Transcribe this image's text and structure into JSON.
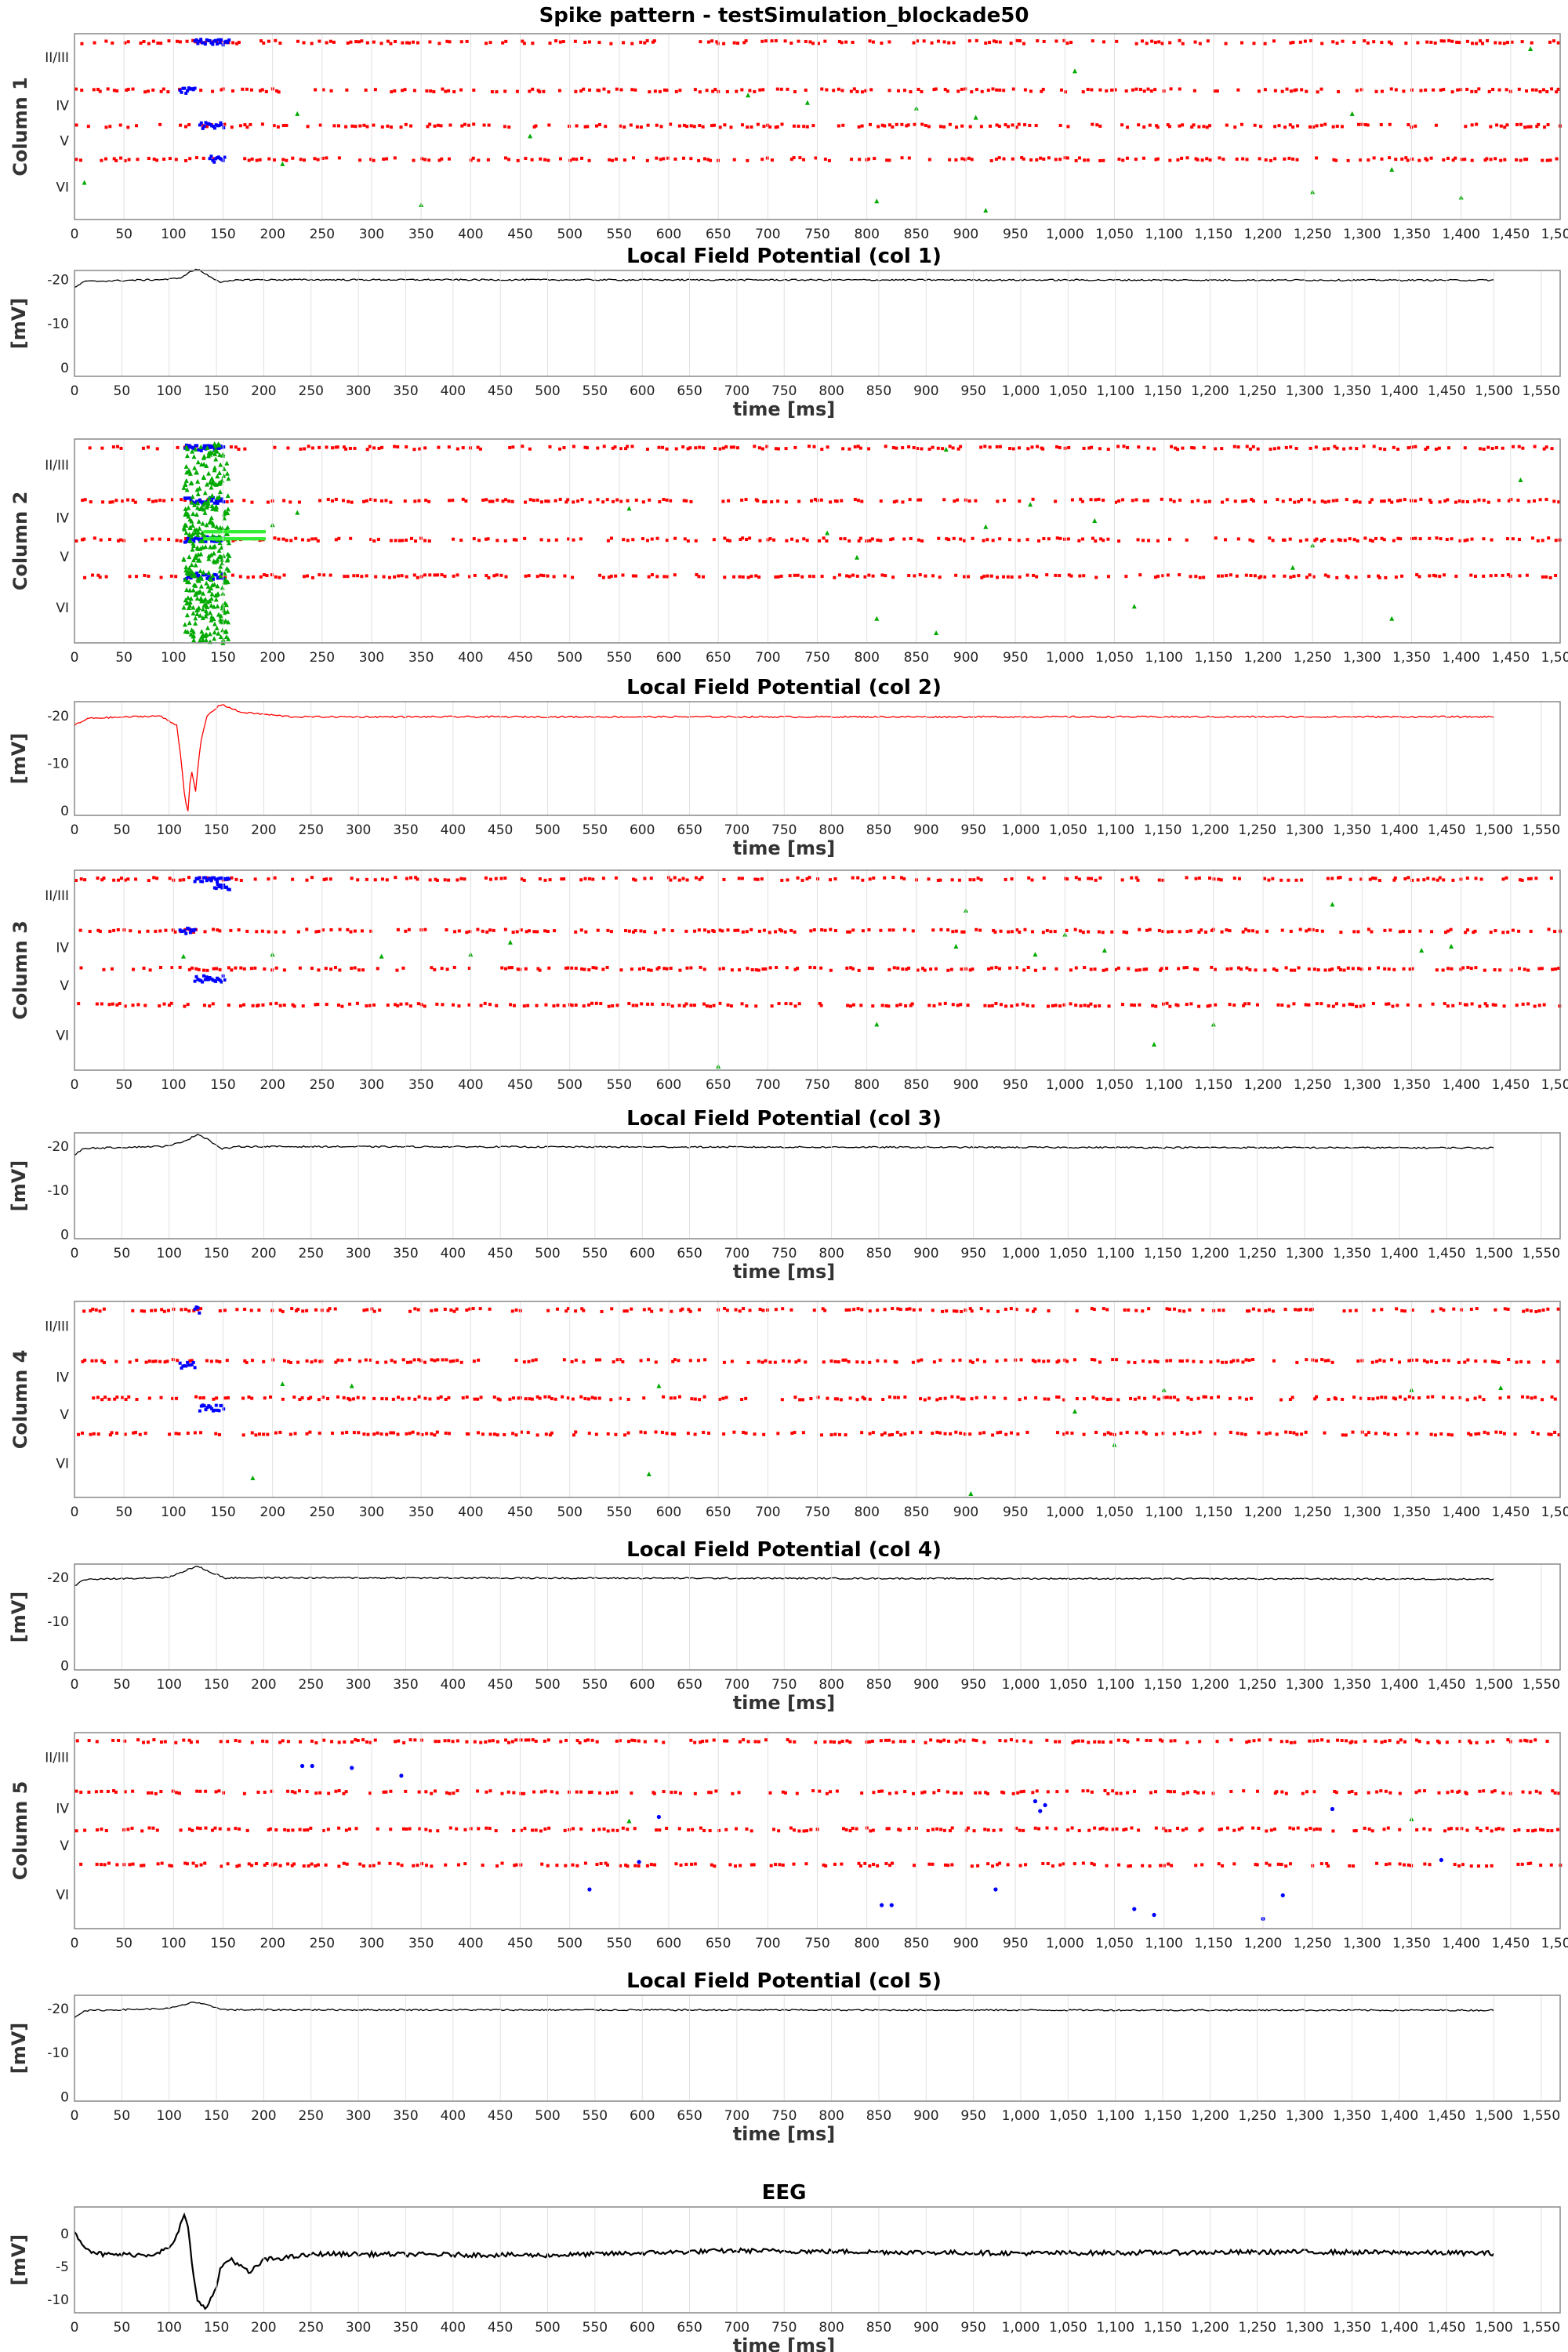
{
  "title": "Spike pattern - testSimulation_blockade50",
  "colors": {
    "excitatory": "#ff0000",
    "inhibitory": "#0000ff",
    "thalamic": "#00aa00",
    "thalamic_light": "#33ee33",
    "lfp_normal": "#000000",
    "lfp_col2": "#ff0000",
    "grid": "#e0e0e0"
  },
  "x_ticks_raster": [
    "0",
    "50",
    "100",
    "150",
    "200",
    "250",
    "300",
    "350",
    "400",
    "450",
    "500",
    "550",
    "600",
    "650",
    "700",
    "750",
    "800",
    "850",
    "900",
    "950",
    "1,000",
    "1,050",
    "1,100",
    "1,150",
    "1,200",
    "1,250",
    "1,300",
    "1,350",
    "1,400",
    "1,450",
    "1,500"
  ],
  "x_ticks_lfp": [
    "0",
    "50",
    "100",
    "150",
    "200",
    "250",
    "300",
    "350",
    "400",
    "450",
    "500",
    "550",
    "600",
    "650",
    "700",
    "750",
    "800",
    "850",
    "900",
    "950",
    "1,000",
    "1,050",
    "1,100",
    "1,150",
    "1,200",
    "1,250",
    "1,300",
    "1,350",
    "1,400",
    "1,450",
    "1,500",
    "1,550"
  ],
  "layer_labels": [
    "II/III",
    "IV",
    "V",
    "VI"
  ],
  "chart_data": [
    {
      "type": "scatter",
      "ylabel": "Column 1",
      "xlim": [
        0,
        1500
      ],
      "layers": [
        "II/III",
        "IV",
        "V",
        "VI"
      ],
      "series": [
        {
          "name": "excitatory",
          "rows": [
            0.02,
            0.28,
            0.47,
            0.65
          ],
          "rate": 0.13
        },
        {
          "name": "inhibitory",
          "bursts": [
            [
              120,
              155,
              0.02
            ],
            [
              105,
              120,
              0.28
            ],
            [
              125,
              150,
              0.47
            ],
            [
              135,
              150,
              0.65
            ]
          ]
        },
        {
          "name": "thalamic",
          "points": [
            [
              10,
              0.8
            ],
            [
              210,
              0.7
            ],
            [
              225,
              0.43
            ],
            [
              350,
              0.92
            ],
            [
              460,
              0.55
            ],
            [
              680,
              0.33
            ],
            [
              740,
              0.37
            ],
            [
              810,
              0.9
            ],
            [
              850,
              0.4
            ],
            [
              910,
              0.45
            ],
            [
              920,
              0.95
            ],
            [
              1010,
              0.2
            ],
            [
              1250,
              0.85
            ],
            [
              1290,
              0.43
            ],
            [
              1330,
              0.73
            ],
            [
              1400,
              0.88
            ],
            [
              1470,
              0.08
            ]
          ]
        }
      ]
    },
    {
      "type": "line",
      "title": "Local Field Potential (col 1)",
      "xlabel": "time [ms]",
      "ylabel": "[mV]",
      "xlim": [
        0,
        1570
      ],
      "ylim": [
        22,
        -2
      ],
      "yticks": [
        "-20",
        "-10",
        "0"
      ],
      "color": "normal",
      "profile": [
        [
          0,
          18
        ],
        [
          10,
          19.5
        ],
        [
          100,
          20
        ],
        [
          115,
          20.5
        ],
        [
          120,
          21.5
        ],
        [
          130,
          22.3
        ],
        [
          140,
          21
        ],
        [
          155,
          19.3
        ],
        [
          175,
          19.9
        ],
        [
          1500,
          19.8
        ]
      ]
    },
    {
      "type": "scatter",
      "ylabel": "Column 2",
      "xlim": [
        0,
        1500
      ],
      "layers": [
        "II/III",
        "IV",
        "V",
        "VI"
      ],
      "series": [
        {
          "name": "excitatory",
          "rows": [
            0.02,
            0.28,
            0.47,
            0.65
          ],
          "rate": 0.14
        },
        {
          "name": "inhibitory",
          "bursts": [
            [
              110,
              150,
              0.02
            ],
            [
              110,
              150,
              0.28
            ],
            [
              110,
              150,
              0.47
            ],
            [
              110,
              150,
              0.65
            ]
          ]
        },
        {
          "name": "thalamic",
          "points": [
            [
              200,
              0.42
            ],
            [
              225,
              0.36
            ],
            [
              560,
              0.34
            ],
            [
              760,
              0.46
            ],
            [
              790,
              0.58
            ],
            [
              810,
              0.88
            ],
            [
              870,
              0.95
            ],
            [
              880,
              0.05
            ],
            [
              920,
              0.43
            ],
            [
              965,
              0.32
            ],
            [
              1030,
              0.4
            ],
            [
              1070,
              0.82
            ],
            [
              1230,
              0.63
            ],
            [
              1250,
              0.52
            ],
            [
              1330,
              0.88
            ],
            [
              1460,
              0.2
            ]
          ]
        }
      ]
    },
    {
      "type": "line",
      "title": "Local Field Potential (col 2)",
      "xlabel": "time [ms]",
      "ylabel": "[mV]",
      "xlim": [
        0,
        1570
      ],
      "ylim": [
        23,
        -1
      ],
      "yticks": [
        "-20",
        "-10",
        "0"
      ],
      "color": "col2",
      "profile": [
        [
          0,
          18
        ],
        [
          15,
          19.5
        ],
        [
          90,
          20
        ],
        [
          108,
          18
        ],
        [
          112,
          12
        ],
        [
          117,
          2
        ],
        [
          120,
          0
        ],
        [
          123,
          9
        ],
        [
          128,
          4
        ],
        [
          133,
          14
        ],
        [
          140,
          20
        ],
        [
          155,
          22.5
        ],
        [
          175,
          20.8
        ],
        [
          230,
          19.8
        ],
        [
          1500,
          19.8
        ]
      ]
    },
    {
      "type": "scatter",
      "ylabel": "Column 3",
      "xlim": [
        0,
        1500
      ],
      "layers": [
        "II/III",
        "IV",
        "V",
        "VI"
      ],
      "series": [
        {
          "name": "excitatory",
          "rows": [
            0.02,
            0.28,
            0.47,
            0.65
          ],
          "rate": 0.13
        },
        {
          "name": "inhibitory",
          "bursts": [
            [
              120,
              155,
              0.02
            ],
            [
              105,
              120,
              0.28
            ],
            [
              120,
              150,
              0.52
            ],
            [
              140,
              155,
              0.06
            ]
          ]
        },
        {
          "name": "thalamic",
          "points": [
            [
              110,
              0.43
            ],
            [
              200,
              0.42
            ],
            [
              310,
              0.43
            ],
            [
              400,
              0.42
            ],
            [
              440,
              0.36
            ],
            [
              650,
              0.98
            ],
            [
              810,
              0.77
            ],
            [
              900,
              0.2
            ],
            [
              890,
              0.38
            ],
            [
              970,
              0.42
            ],
            [
              1000,
              0.32
            ],
            [
              1040,
              0.4
            ],
            [
              1090,
              0.87
            ],
            [
              1150,
              0.77
            ],
            [
              1270,
              0.17
            ],
            [
              1360,
              0.4
            ],
            [
              1390,
              0.38
            ]
          ]
        }
      ]
    },
    {
      "type": "line",
      "title": "Local Field Potential (col 3)",
      "xlabel": "time [ms]",
      "ylabel": "[mV]",
      "xlim": [
        0,
        1570
      ],
      "ylim": [
        23,
        -1
      ],
      "yticks": [
        "-20",
        "-10",
        "0"
      ],
      "color": "normal",
      "profile": [
        [
          0,
          18
        ],
        [
          10,
          19.5
        ],
        [
          100,
          20
        ],
        [
          120,
          21.5
        ],
        [
          130,
          22.7
        ],
        [
          140,
          21.7
        ],
        [
          155,
          19.4
        ],
        [
          175,
          19.9
        ],
        [
          1500,
          19.6
        ]
      ]
    },
    {
      "type": "scatter",
      "ylabel": "Column 4",
      "xlim": [
        0,
        1500
      ],
      "layers": [
        "II/III",
        "IV",
        "V",
        "VI"
      ],
      "series": [
        {
          "name": "excitatory",
          "rows": [
            0.02,
            0.28,
            0.47,
            0.65
          ],
          "rate": 0.13
        },
        {
          "name": "inhibitory",
          "bursts": [
            [
              120,
              125,
              0.02
            ],
            [
              105,
              120,
              0.3
            ],
            [
              125,
              150,
              0.52
            ]
          ]
        },
        {
          "name": "thalamic",
          "points": [
            [
              180,
              0.9
            ],
            [
              210,
              0.42
            ],
            [
              280,
              0.43
            ],
            [
              580,
              0.88
            ],
            [
              590,
              0.43
            ],
            [
              905,
              0.98
            ],
            [
              1010,
              0.56
            ],
            [
              1050,
              0.73
            ],
            [
              1100,
              0.45
            ],
            [
              1350,
              0.45
            ],
            [
              1440,
              0.44
            ]
          ]
        }
      ]
    },
    {
      "type": "line",
      "title": "Local Field Potential (col 4)",
      "xlabel": "time [ms]",
      "ylabel": "[mV]",
      "xlim": [
        0,
        1570
      ],
      "ylim": [
        23,
        -1
      ],
      "yticks": [
        "-20",
        "-10",
        "0"
      ],
      "color": "normal",
      "profile": [
        [
          0,
          18
        ],
        [
          10,
          19.5
        ],
        [
          100,
          20
        ],
        [
          120,
          21.8
        ],
        [
          130,
          22.5
        ],
        [
          140,
          21.5
        ],
        [
          160,
          19.8
        ],
        [
          175,
          19.9
        ],
        [
          1500,
          19.6
        ]
      ]
    },
    {
      "type": "scatter",
      "ylabel": "Column 5",
      "xlim": [
        0,
        1500
      ],
      "layers": [
        "II/III",
        "IV",
        "V",
        "VI"
      ],
      "series": [
        {
          "name": "excitatory",
          "rows": [
            0.02,
            0.28,
            0.47,
            0.65
          ],
          "rate": 0.13
        },
        {
          "name": "inhibitory",
          "points": [
            [
              230,
              0.17
            ],
            [
              240,
              0.17
            ],
            [
              280,
              0.18
            ],
            [
              330,
              0.22
            ],
            [
              520,
              0.8
            ],
            [
              590,
              0.43
            ],
            [
              570,
              0.66
            ],
            [
              815,
              0.88
            ],
            [
              825,
              0.88
            ],
            [
              930,
              0.8
            ],
            [
              970,
              0.35
            ],
            [
              975,
              0.4
            ],
            [
              980,
              0.37
            ],
            [
              1070,
              0.9
            ],
            [
              1090,
              0.93
            ],
            [
              1200,
              0.95
            ],
            [
              1220,
              0.83
            ],
            [
              1270,
              0.39
            ],
            [
              1380,
              0.65
            ]
          ]
        },
        {
          "name": "thalamic",
          "points": [
            [
              560,
              0.45
            ],
            [
              1350,
              0.44
            ]
          ]
        }
      ]
    },
    {
      "type": "line",
      "title": "Local Field Potential (col 5)",
      "xlabel": "time [ms]",
      "ylabel": "[mV]",
      "xlim": [
        0,
        1570
      ],
      "ylim": [
        23,
        -1
      ],
      "yticks": [
        "-20",
        "-10",
        "0"
      ],
      "color": "normal",
      "profile": [
        [
          0,
          18
        ],
        [
          10,
          19.5
        ],
        [
          100,
          20
        ],
        [
          115,
          20.8
        ],
        [
          125,
          21.5
        ],
        [
          135,
          21
        ],
        [
          160,
          19.7
        ],
        [
          1500,
          19.6
        ]
      ]
    },
    {
      "type": "line",
      "title": "EEG",
      "xlabel": "time [ms]",
      "ylabel": "[mV]",
      "xlim": [
        0,
        1570
      ],
      "ylim": [
        4,
        -12
      ],
      "yticks": [
        "0",
        "-5",
        "-10"
      ],
      "color": "normal",
      "noise": 0.35,
      "profile": [
        [
          0,
          0
        ],
        [
          15,
          -2.5
        ],
        [
          30,
          -3.2
        ],
        [
          80,
          -3.2
        ],
        [
          100,
          -2.3
        ],
        [
          110,
          0
        ],
        [
          115,
          3
        ],
        [
          120,
          1
        ],
        [
          125,
          -6
        ],
        [
          130,
          -10
        ],
        [
          140,
          -11.3
        ],
        [
          150,
          -8
        ],
        [
          155,
          -5
        ],
        [
          165,
          -3.8
        ],
        [
          185,
          -6
        ],
        [
          200,
          -4
        ],
        [
          260,
          -3.1
        ],
        [
          500,
          -3.3
        ],
        [
          700,
          -2.6
        ],
        [
          1000,
          -3
        ],
        [
          1300,
          -2.8
        ],
        [
          1500,
          -3
        ]
      ]
    }
  ]
}
